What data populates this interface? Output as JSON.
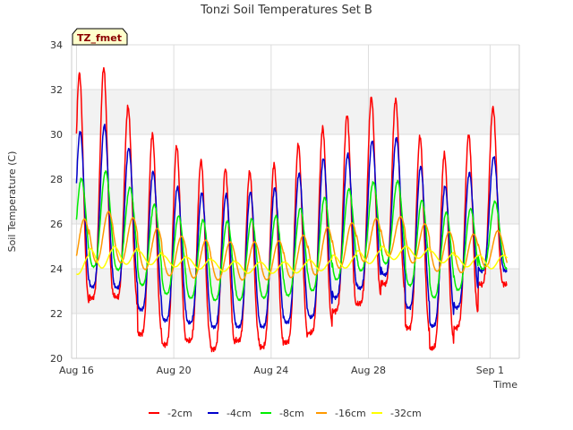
{
  "chart_data": {
    "type": "line",
    "title": "Tonzi Soil Temperatures Set B",
    "xlabel": "Time",
    "ylabel": "Soil Temperature (C)",
    "badge": "TZ_fmet",
    "ylim": [
      20,
      34
    ],
    "xlim_days": [
      15.8,
      34.2
    ],
    "y_ticks": [
      20,
      22,
      24,
      26,
      28,
      30,
      32,
      34
    ],
    "x_ticks": [
      {
        "day": 16,
        "label": "Aug 16"
      },
      {
        "day": 20,
        "label": "Aug 20"
      },
      {
        "day": 24,
        "label": "Aug 24"
      },
      {
        "day": 28,
        "label": "Aug 28"
      },
      {
        "day": 33,
        "label": "Sep 1"
      }
    ],
    "grid": true,
    "legend_position": "bottom-center",
    "day_range": [
      16,
      33.7
    ],
    "series": [
      {
        "name": "-2cm",
        "color": "#ff0000",
        "daily_max": [
          32.6,
          33.3,
          31.5,
          30.1,
          29.6,
          28.9,
          28.5,
          28.3,
          28.5,
          29.4,
          30.2,
          30.7,
          31.6,
          31.9,
          30.1,
          29.0,
          29.7,
          31.2
        ],
        "daily_min": [
          22.2,
          22.7,
          22.8,
          21.1,
          20.6,
          20.8,
          20.4,
          20.8,
          20.5,
          20.7,
          21.1,
          22.1,
          22.4,
          23.4,
          21.4,
          20.4,
          21.3,
          23.3
        ]
      },
      {
        "name": "-4cm",
        "color": "#0000cc",
        "daily_max": [
          30.0,
          30.6,
          29.6,
          28.5,
          27.7,
          27.4,
          27.3,
          27.4,
          27.5,
          28.1,
          28.9,
          29.0,
          29.6,
          30.1,
          28.8,
          27.6,
          28.1,
          29.0
        ],
        "daily_min": [
          23.0,
          23.2,
          23.2,
          22.2,
          21.7,
          21.6,
          21.4,
          21.4,
          21.4,
          21.6,
          21.8,
          22.7,
          23.1,
          23.8,
          22.3,
          21.4,
          22.2,
          23.9
        ]
      },
      {
        "name": "-8cm",
        "color": "#00ee00",
        "daily_max": [
          27.9,
          28.5,
          27.8,
          27.0,
          26.4,
          26.2,
          26.1,
          26.2,
          26.3,
          26.6,
          27.1,
          27.5,
          27.8,
          28.1,
          27.2,
          26.5,
          26.6,
          27.0
        ],
        "daily_min": [
          23.8,
          24.1,
          24.0,
          23.3,
          22.9,
          22.7,
          22.6,
          22.6,
          22.7,
          22.8,
          23.0,
          23.5,
          23.9,
          24.3,
          23.3,
          22.7,
          23.0,
          24.0
        ]
      },
      {
        "name": "-16cm",
        "color": "#ff9900",
        "daily_max": [
          26.1,
          26.6,
          26.4,
          25.9,
          25.5,
          25.3,
          25.2,
          25.2,
          25.2,
          25.4,
          25.8,
          26.0,
          26.2,
          26.4,
          26.1,
          25.7,
          25.5,
          25.7
        ],
        "daily_min": [
          24.0,
          24.3,
          24.3,
          24.0,
          23.7,
          23.6,
          23.5,
          23.5,
          23.5,
          23.6,
          23.7,
          24.0,
          24.3,
          24.6,
          24.3,
          23.9,
          23.8,
          24.1
        ]
      },
      {
        "name": "-32cm",
        "color": "#ffff00",
        "daily_max": [
          24.5,
          24.9,
          25.0,
          24.8,
          24.6,
          24.5,
          24.4,
          24.3,
          24.3,
          24.3,
          24.4,
          24.6,
          24.8,
          25.0,
          25.0,
          24.8,
          24.6,
          24.6
        ],
        "daily_min": [
          23.7,
          24.0,
          24.2,
          24.2,
          24.1,
          24.0,
          23.9,
          23.8,
          23.8,
          23.8,
          23.9,
          24.0,
          24.2,
          24.4,
          24.5,
          24.3,
          24.1,
          24.0
        ]
      }
    ]
  },
  "colors": {
    "plot_bg": "#ffffff",
    "band_bg": "#f2f2f2",
    "grid": "#dddddd",
    "axis": "#cccccc",
    "badge_bg": "#ffffcc"
  }
}
